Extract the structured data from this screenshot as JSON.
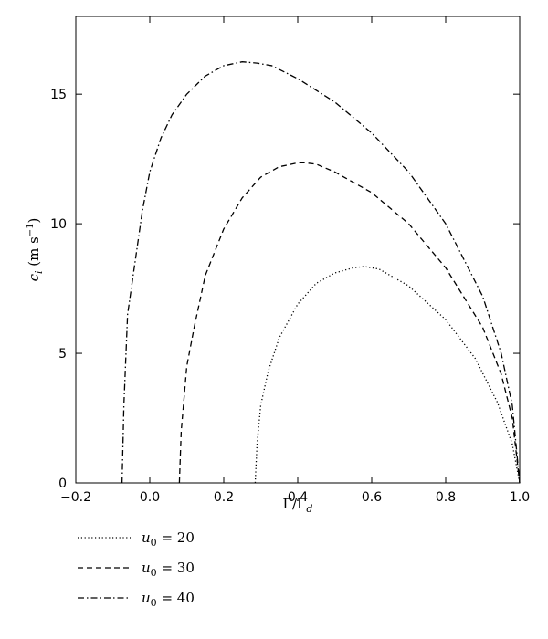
{
  "chart_data": {
    "type": "line",
    "title": "",
    "xlabel": "Γ/Γ",
    "xlabel_sub": "d",
    "ylabel": "c",
    "ylabel_sub": "i",
    "ylabel_unit": " (m s",
    "ylabel_unit_sup": "−1",
    "ylabel_unit_close": ")",
    "xlim": [
      -0.2,
      1.0
    ],
    "ylim": [
      0,
      18
    ],
    "xticks": [
      -0.2,
      0.0,
      0.2,
      0.4,
      0.6,
      0.8,
      1.0
    ],
    "xtick_labels": [
      "−0.2",
      "0.0",
      "0.2",
      "0.4",
      "0.6",
      "0.8",
      "1.0"
    ],
    "yticks": [
      0,
      5,
      10,
      15
    ],
    "ytick_labels": [
      "0",
      "5",
      "10",
      "15"
    ],
    "grid": false,
    "legend_position": "bottom-left, below plot",
    "series": [
      {
        "name": "u0 = 20",
        "legend_var": "u",
        "legend_sub": "0",
        "legend_value": " = 20",
        "dash": "dotted",
        "x": [
          0.285,
          0.29,
          0.3,
          0.32,
          0.35,
          0.4,
          0.45,
          0.5,
          0.55,
          0.58,
          0.62,
          0.7,
          0.8,
          0.88,
          0.94,
          0.98,
          1.0
        ],
        "y": [
          0.0,
          1.5,
          3.0,
          4.3,
          5.6,
          6.9,
          7.7,
          8.1,
          8.3,
          8.35,
          8.25,
          7.6,
          6.3,
          4.8,
          3.1,
          1.5,
          0.0
        ]
      },
      {
        "name": "u0 = 30",
        "legend_var": "u",
        "legend_sub": "0",
        "legend_value": " = 30",
        "dash": "dashed",
        "x": [
          0.08,
          0.085,
          0.1,
          0.12,
          0.15,
          0.2,
          0.25,
          0.3,
          0.35,
          0.4,
          0.42,
          0.45,
          0.5,
          0.6,
          0.7,
          0.8,
          0.9,
          0.95,
          0.98,
          1.0
        ],
        "y": [
          0.0,
          2.0,
          4.5,
          6.0,
          8.0,
          9.8,
          11.0,
          11.8,
          12.2,
          12.35,
          12.35,
          12.3,
          12.0,
          11.2,
          10.0,
          8.3,
          6.0,
          4.2,
          2.5,
          0.0
        ]
      },
      {
        "name": "u0 = 40",
        "legend_var": "u",
        "legend_sub": "0",
        "legend_value": " = 40",
        "dash": "dashdot",
        "x": [
          -0.075,
          -0.07,
          -0.06,
          -0.04,
          -0.02,
          0.0,
          0.03,
          0.06,
          0.1,
          0.15,
          0.2,
          0.25,
          0.29,
          0.33,
          0.4,
          0.5,
          0.6,
          0.7,
          0.8,
          0.9,
          0.95,
          0.98,
          1.0
        ],
        "y": [
          0.0,
          3.0,
          6.5,
          8.5,
          10.5,
          12.0,
          13.3,
          14.2,
          15.0,
          15.7,
          16.1,
          16.25,
          16.2,
          16.1,
          15.6,
          14.7,
          13.5,
          12.0,
          10.0,
          7.2,
          5.0,
          3.0,
          0.0
        ]
      }
    ]
  }
}
